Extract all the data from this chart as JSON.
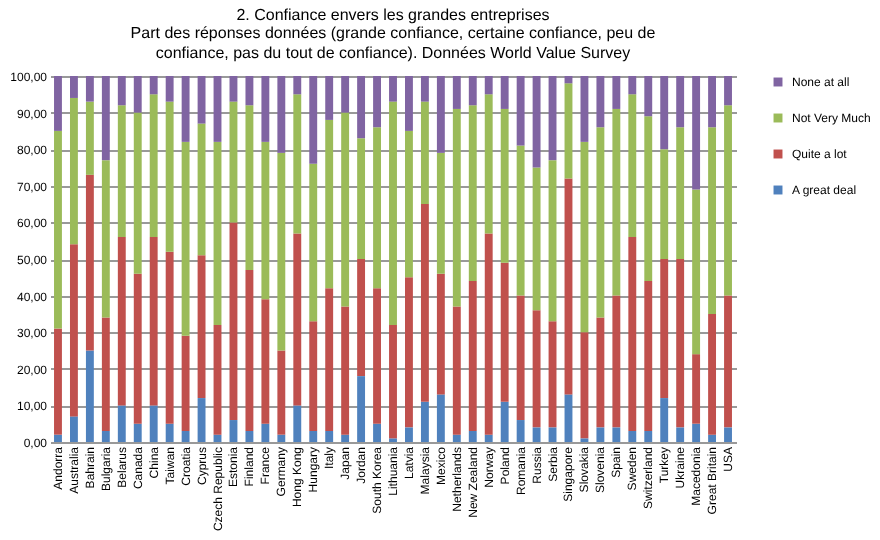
{
  "chart_data": {
    "type": "bar",
    "stacked": true,
    "title": "2. Confiance envers les grandes entreprises",
    "subtitle": "Part des réponses données (grande confiance, certaine confiance, peu de confiance, pas du tout de confiance). Données World Value Survey",
    "categories": [
      "Andorra",
      "Australia",
      "Bahrain",
      "Bulgaria",
      "Belarus",
      "Canada",
      "China",
      "Taiwan",
      "Croatia",
      "Cyprus",
      "Czech Republic",
      "Estonia",
      "Finland",
      "France",
      "Germany",
      "Hong Kong",
      "Hungary",
      "Italy",
      "Japan",
      "Jordan",
      "South Korea",
      "Lithuania",
      "Latvia",
      "Malaysia",
      "Mexico",
      "Netherlands",
      "New Zealand",
      "Norway",
      "Poland",
      "Romania",
      "Russia",
      "Serbia",
      "Singapore",
      "Slovakia",
      "Slovenia",
      "Spain",
      "Sweden",
      "Switzerland",
      "Turkey",
      "Ukraine",
      "Macedonia",
      "Great Britain",
      "USA"
    ],
    "series": [
      {
        "name": "A great deal",
        "color": "#4f81bd",
        "values": [
          2,
          7,
          25,
          3,
          10,
          5,
          10,
          5,
          3,
          12,
          2,
          6,
          3,
          5,
          2,
          10,
          3,
          3,
          2,
          18,
          5,
          1,
          4,
          11,
          13,
          2,
          3,
          2,
          11,
          6,
          4,
          4,
          13,
          1,
          4,
          4,
          3,
          3,
          12,
          4,
          5,
          2,
          4
        ]
      },
      {
        "name": "Quite a lot",
        "color": "#c0504d",
        "values": [
          29,
          47,
          48,
          31,
          46,
          41,
          46,
          47,
          26,
          39,
          30,
          54,
          44,
          34,
          23,
          47,
          30,
          39,
          35,
          32,
          37,
          31,
          41,
          54,
          33,
          35,
          41,
          55,
          38,
          34,
          32,
          29,
          59,
          29,
          30,
          36,
          53,
          41,
          38,
          46,
          19,
          33,
          36
        ]
      },
      {
        "name": "Not Very Much",
        "color": "#9bbb59",
        "values": [
          54,
          40,
          20,
          43,
          36,
          44,
          39,
          41,
          53,
          36,
          50,
          33,
          45,
          43,
          54,
          38,
          43,
          46,
          53,
          33,
          44,
          61,
          40,
          28,
          33,
          54,
          48,
          38,
          42,
          41,
          39,
          44,
          26,
          52,
          52,
          51,
          39,
          45,
          30,
          36,
          45,
          51,
          52
        ]
      },
      {
        "name": "None at all",
        "color": "#8064a2",
        "values": [
          15,
          6,
          7,
          23,
          8,
          10,
          5,
          7,
          18,
          13,
          18,
          7,
          8,
          18,
          21,
          5,
          24,
          12,
          10,
          17,
          14,
          7,
          15,
          7,
          21,
          9,
          8,
          5,
          9,
          19,
          25,
          23,
          2,
          18,
          14,
          9,
          5,
          11,
          20,
          14,
          31,
          14,
          8
        ]
      }
    ],
    "ylim": [
      0,
      100
    ],
    "yticks": [
      {
        "value": 0,
        "label": "0,00"
      },
      {
        "value": 10,
        "label": "10,00"
      },
      {
        "value": 20,
        "label": "20,00"
      },
      {
        "value": 30,
        "label": "30,00"
      },
      {
        "value": 40,
        "label": "40,00"
      },
      {
        "value": 50,
        "label": "50,00"
      },
      {
        "value": 60,
        "label": "60,00"
      },
      {
        "value": 70,
        "label": "70,00"
      },
      {
        "value": 80,
        "label": "80,00"
      },
      {
        "value": 90,
        "label": "90,00"
      },
      {
        "value": 100,
        "label": "100,00"
      }
    ],
    "grid": "y",
    "legend": "right"
  }
}
